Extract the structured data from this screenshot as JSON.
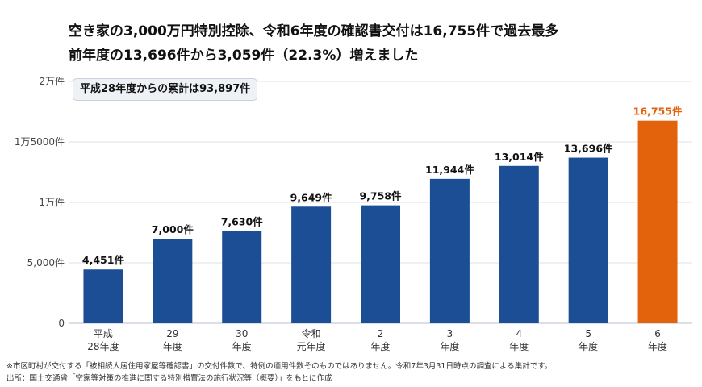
{
  "header": {
    "title_line1": "空き家の3,000万円特別控除、令和6年度の確認書交付は16,755件で過去最多",
    "title_line2": "前年度の13,696件から3,059件（22.3%）増えました"
  },
  "callout": "平成28年度からの累計は93,897件",
  "footnotes": {
    "note": "※市区町村が交付する「被相続人居住用家屋等確認書」の交付件数で、特例の適用件数そのものではありません。令和7年3月31日時点の調査による集計です。",
    "source": "出所：国土交通省「空家等対策の推進に関する特別措置法の施行状況等（概要）」をもとに作成"
  },
  "chart_data": {
    "type": "bar",
    "title": "空き家の3,000万円特別控除、令和6年度の確認書交付は16,755件で過去最多",
    "subtitle": "前年度の13,696件から3,059件（22.3%）増えました",
    "categories": [
      [
        "平成",
        "28年度"
      ],
      [
        "29",
        "年度"
      ],
      [
        "30",
        "年度"
      ],
      [
        "令和",
        "元年度"
      ],
      [
        "2",
        "年度"
      ],
      [
        "3",
        "年度"
      ],
      [
        "4",
        "年度"
      ],
      [
        "5",
        "年度"
      ],
      [
        "6",
        "年度"
      ]
    ],
    "values": [
      4451,
      7000,
      7630,
      9649,
      9758,
      11944,
      13014,
      13696,
      16755
    ],
    "data_labels": [
      "4,451件",
      "7,000件",
      "7,630件",
      "9,649件",
      "9,758件",
      "11,944件",
      "13,014件",
      "13,696件",
      "16,755件"
    ],
    "ylim": [
      0,
      20000
    ],
    "yticks": [
      {
        "value": 0,
        "label": "0"
      },
      {
        "value": 5000,
        "label": "5,000件"
      },
      {
        "value": 10000,
        "label": "1万件"
      },
      {
        "value": 15000,
        "label": "1万5000件"
      },
      {
        "value": 20000,
        "label": "2万件"
      }
    ],
    "grid": true,
    "xlabel": "",
    "ylabel": "",
    "colors": {
      "bar": "#1c4e96",
      "highlight": "#e3630d",
      "grid": "#dde3ea",
      "axis_text": "#444444"
    },
    "highlight_index": 8
  }
}
